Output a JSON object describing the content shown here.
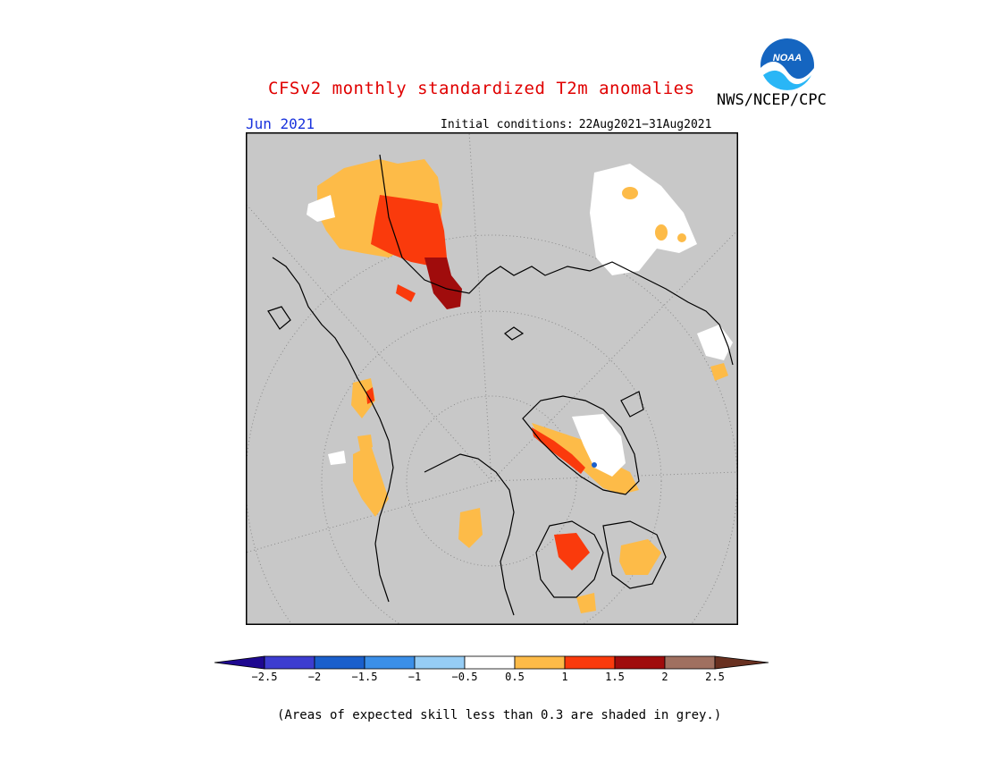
{
  "header": {
    "title": "CFSv2 monthly standardized T2m anomalies",
    "agency": "NWS/NCEP/CPC",
    "logo_text": "NOAA",
    "month": "Jun 2021",
    "ic_label": "Initial conditions:",
    "ic_range": "22Aug2021−31Aug2021"
  },
  "colorbar": {
    "ticks": [
      "−2.5",
      "−2",
      "−1.5",
      "−1",
      "−0.5",
      "0.5",
      "1",
      "1.5",
      "2",
      "2.5"
    ],
    "colors": {
      "below_-2.5": "#1e0890",
      "-2.5_-2": "#3d3dd0",
      "-2_-1.5": "#1a5fcc",
      "-1.5_-1": "#3b8fe8",
      "-1_-0.5": "#96cdf5",
      "-0.5_0.5": "#ffffff",
      "0.5_1": "#fdbb48",
      "1_1.5": "#fa3a0c",
      "1.5_2": "#a00c0c",
      "2_2.5": "#a07060",
      "above_2.5": "#683020"
    }
  },
  "map": {
    "background": "#c8c8c8",
    "projection": "north polar stereographic",
    "coastline_color": "#000000"
  },
  "footnote": "(Areas of expected skill less than 0.3 are shaded in grey.)"
}
